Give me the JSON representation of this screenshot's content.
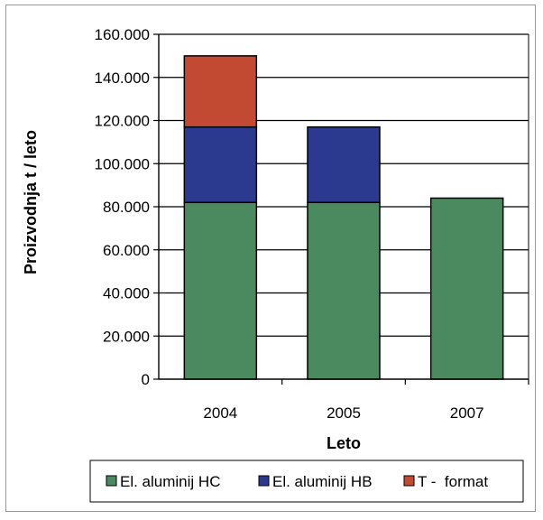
{
  "chart_data": {
    "type": "bar",
    "stacked": true,
    "categories": [
      "2004",
      "2005",
      "2007"
    ],
    "series": [
      {
        "name": "El. aluminij HC",
        "values": [
          82000,
          82000,
          84000
        ],
        "color": "#4a8a5e"
      },
      {
        "name": "El. aluminij HB",
        "values": [
          35000,
          35000,
          0
        ],
        "color": "#2b3a8f"
      },
      {
        "name": "T -  format",
        "values": [
          33000,
          0,
          0
        ],
        "color": "#c24a32"
      }
    ],
    "title": "",
    "xlabel": "Leto",
    "ylabel": "Proizvodnja t / leto",
    "ylim": [
      0,
      160000
    ],
    "yticks": [
      0,
      20000,
      40000,
      60000,
      80000,
      100000,
      120000,
      140000,
      160000
    ],
    "ytick_labels": [
      "0",
      "20.000",
      "40.000",
      "60.000",
      "80.000",
      "100.000",
      "120.000",
      "140.000",
      "160.000"
    ],
    "grid": true,
    "legend_position": "bottom"
  }
}
